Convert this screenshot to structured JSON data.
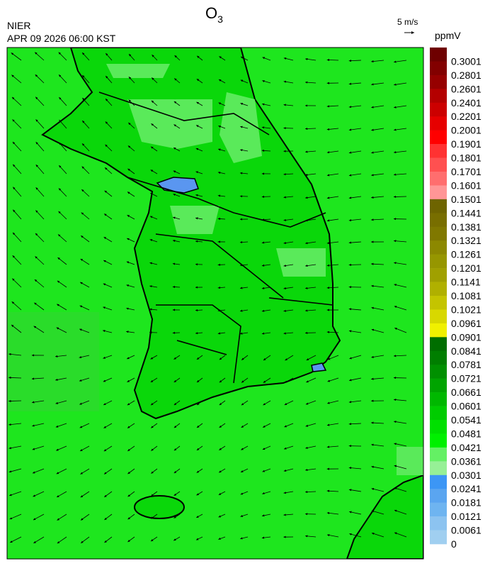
{
  "header": {
    "title": {
      "text": "O",
      "subscript": "3"
    },
    "source": "NIER",
    "datetime": "APR 09 2026 06:00 KST",
    "wind_scale": "5 m/s"
  },
  "colorbar": {
    "unit": "ppmV",
    "levels": [
      0.3001,
      0.2801,
      0.2601,
      0.2401,
      0.2201,
      0.2001,
      0.1901,
      0.1801,
      0.1701,
      0.1601,
      0.1501,
      0.1441,
      0.1381,
      0.1321,
      0.1261,
      0.1201,
      0.1141,
      0.1081,
      0.1021,
      0.0961,
      0.0901,
      0.0841,
      0.0781,
      0.0721,
      0.0661,
      0.0601,
      0.0541,
      0.0481,
      0.0421,
      0.0361,
      0.0301,
      0.0241,
      0.0181,
      0.0121,
      0.0061,
      0
    ],
    "colors": [
      "#6e0000",
      "#820000",
      "#960000",
      "#b40000",
      "#cc0000",
      "#e60000",
      "#ff0000",
      "#ff3232",
      "#ff5050",
      "#ff6e6e",
      "#ff9696",
      "#6e6400",
      "#786e00",
      "#807800",
      "#8c8800",
      "#969600",
      "#a0a000",
      "#b0b000",
      "#c4c400",
      "#d8d800",
      "#f0f000",
      "#006e00",
      "#007e00",
      "#009000",
      "#00a400",
      "#00b800",
      "#00cc00",
      "#00e000",
      "#00f000",
      "#64f064",
      "#96f096",
      "#3c96f5",
      "#5aa5f0",
      "#6eb4f0",
      "#8cc3f0",
      "#a0cff0"
    ]
  }
}
